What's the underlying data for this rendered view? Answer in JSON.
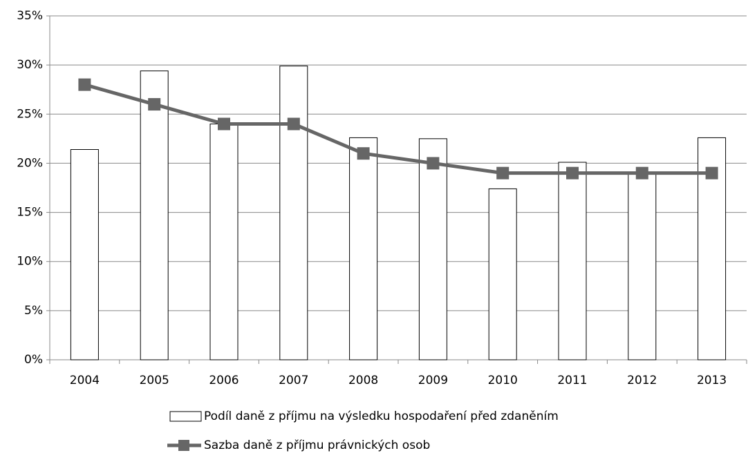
{
  "chart_data": {
    "type": "bar",
    "categories": [
      "2004",
      "2005",
      "2006",
      "2007",
      "2008",
      "2009",
      "2010",
      "2011",
      "2012",
      "2013"
    ],
    "series": [
      {
        "name": "Podíl daně z příjmu na výsledku hospodaření před zdaněním",
        "type": "bar",
        "color": "#ffffff",
        "stroke": "#000000",
        "values": [
          21.4,
          29.4,
          24.0,
          29.9,
          22.6,
          22.5,
          17.4,
          20.1,
          19.0,
          22.6
        ]
      },
      {
        "name": "Sazba daně z příjmu právnických osob",
        "type": "line",
        "color": "#666666",
        "values": [
          28,
          26,
          24,
          24,
          21,
          20,
          19,
          19,
          19,
          19
        ]
      }
    ],
    "ylim": [
      0,
      35
    ],
    "yticks": [
      {
        "value": 0,
        "label": "0%"
      },
      {
        "value": 5,
        "label": "5%"
      },
      {
        "value": 10,
        "label": "10%"
      },
      {
        "value": 15,
        "label": "15%"
      },
      {
        "value": 20,
        "label": "20%"
      },
      {
        "value": 25,
        "label": "25%"
      },
      {
        "value": 30,
        "label": "30%"
      },
      {
        "value": 35,
        "label": "35%"
      }
    ],
    "grid": true,
    "legend": "bottom"
  }
}
